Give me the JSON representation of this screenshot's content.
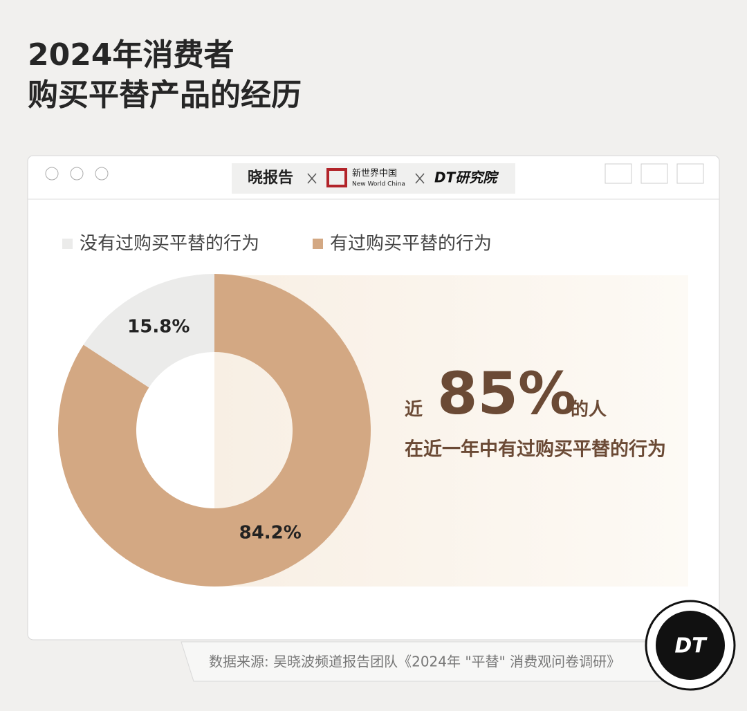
{
  "header": {
    "title_lines": [
      "2024年消费者",
      "购买平替产品的经历"
    ],
    "logos": [
      "晓报告",
      "新世界中国",
      "New World China",
      "DT研究院"
    ]
  },
  "chart_data": {
    "type": "pie",
    "donut": true,
    "categories": [
      "没有过购买平替的行为",
      "有过购买平替的行为"
    ],
    "values": [
      15.8,
      84.2
    ],
    "value_labels": [
      "15.8%",
      "84.2%"
    ],
    "colors": [
      "#ebebea",
      "#d3a883"
    ],
    "annotation": {
      "prefix": "近",
      "highlight": "85%",
      "suffix": "的人",
      "line2": "在近一年中有过购买平替的行为"
    }
  },
  "footer": {
    "source": "数据来源: 吴晓波频道报告团队《2024年 \"平替\" 消费观问卷调研》",
    "badge": "DT"
  }
}
